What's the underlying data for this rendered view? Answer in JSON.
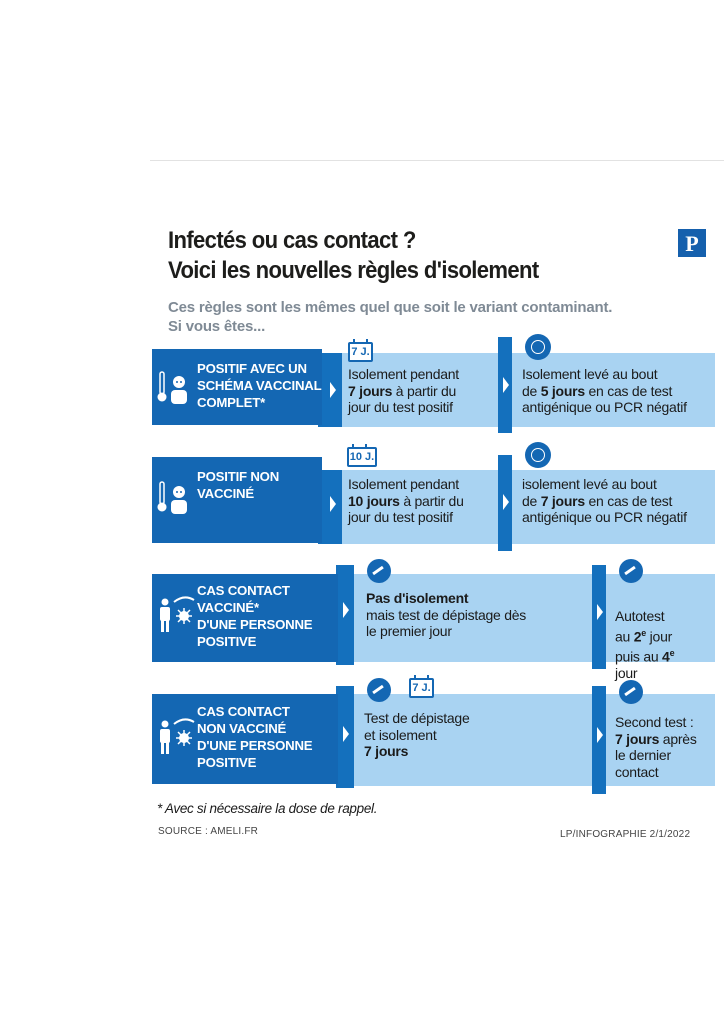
{
  "header": {
    "title_line1": "Infectés ou cas contact ?",
    "title_line2": "Voici les nouvelles règles d'isolement",
    "subtitle_line1": "Ces règles sont les mêmes quel que soit le variant contaminant.",
    "subtitle_line2": "Si vous êtes...",
    "logo_letter": "P"
  },
  "rows": [
    {
      "label": [
        "POSITIF AVEC UN",
        "SCHÉMA VACCINAL",
        "COMPLET*"
      ],
      "calendar": "7 J.",
      "step1": {
        "pre": "Isolement pendant",
        "bold": "7 jours",
        "post": " à partir du",
        "line3": "jour du test positif"
      },
      "step2": {
        "line1": "Isolement levé au bout",
        "pre": "de ",
        "bold": "5 jours",
        "post": " en cas de test",
        "line3": "antigénique ou PCR négatif"
      }
    },
    {
      "label": [
        "POSITIF NON",
        "VACCINÉ"
      ],
      "calendar": "10 J.",
      "step1": {
        "pre": "Isolement pendant",
        "bold": "10 jours",
        "post": " à partir du",
        "line3": "jour du test positif"
      },
      "step2": {
        "line1": "isolement levé au bout",
        "pre": "de ",
        "bold": "7 jours",
        "post": " en cas de test",
        "line3": "antigénique ou PCR négatif"
      }
    },
    {
      "label": [
        "CAS CONTACT",
        "VACCINÉ*",
        "D'UNE PERSONNE",
        "POSITIVE"
      ],
      "step1": {
        "bold": "Pas d'isolement",
        "line2": "mais test de dépistage dès",
        "line3": "le premier jour"
      },
      "step2": {
        "line1": "Autotest",
        "line2_pre": "au ",
        "line2_bold": "2",
        "line2_sup": "e",
        "line2_post": " jour",
        "line3_pre": "puis au ",
        "line3_bold": "4",
        "line3_sup": "e",
        "line4": "jour"
      }
    },
    {
      "label": [
        "CAS CONTACT",
        "NON VACCINÉ",
        "D'UNE PERSONNE",
        "POSITIVE"
      ],
      "calendar": "7 J.",
      "step1": {
        "line1": "Test de dépistage",
        "line2": "et isolement",
        "bold": "7 jours"
      },
      "step2": {
        "line1": "Second test :",
        "bold": "7 jours",
        "post": " après",
        "line3": "le dernier",
        "line4": "contact"
      }
    }
  ],
  "footer": {
    "note": "* Avec si nécessaire la dose de rappel.",
    "source": "SOURCE : AMELI.FR",
    "credit": "LP/INFOGRAPHIE   2/1/2022"
  }
}
